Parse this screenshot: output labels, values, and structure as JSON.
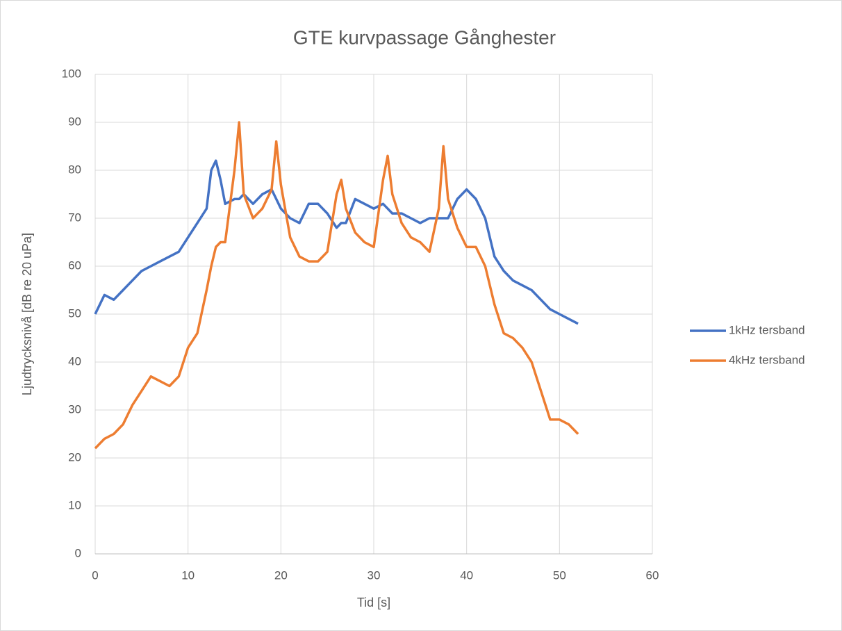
{
  "chart_data": {
    "type": "line",
    "title": "GTE kurvpassage Gånghester",
    "xlabel": "Tid [s]",
    "ylabel": "Ljudtrycksnivå [dB re 20 uPa]",
    "x": [
      0,
      1,
      2,
      3,
      4,
      5,
      6,
      7,
      8,
      9,
      10,
      11,
      12,
      12.5,
      13,
      13.5,
      14,
      15,
      15.5,
      16,
      17,
      18,
      19,
      19.5,
      20,
      21,
      22,
      23,
      24,
      25,
      26,
      26.5,
      27,
      28,
      29,
      30,
      31,
      31.5,
      32,
      33,
      34,
      35,
      36,
      37,
      37.5,
      38,
      39,
      40,
      41,
      42,
      43,
      44,
      45,
      46,
      47,
      48,
      49,
      50,
      51,
      52
    ],
    "series": [
      {
        "name": "1kHz tersband",
        "color": "#4472c4",
        "values": [
          50,
          54,
          53,
          55,
          57,
          59,
          60,
          61,
          62,
          63,
          66,
          69,
          72,
          80,
          82,
          78,
          73,
          74,
          74,
          75,
          73,
          75,
          76,
          74,
          72,
          70,
          69,
          73,
          73,
          71,
          68,
          69,
          69,
          74,
          73,
          72,
          73,
          72,
          71,
          71,
          70,
          69,
          70,
          70,
          70,
          70,
          74,
          76,
          74,
          70,
          62,
          59,
          57,
          56,
          55,
          53,
          51,
          50,
          49,
          48
        ]
      },
      {
        "name": "4kHz tersband",
        "color": "#ed7d31",
        "values": [
          22,
          24,
          25,
          27,
          31,
          34,
          37,
          36,
          35,
          37,
          43,
          46,
          55,
          60,
          64,
          65,
          65,
          80,
          90,
          75,
          70,
          72,
          76,
          86,
          77,
          66,
          62,
          61,
          61,
          63,
          75,
          78,
          72,
          67,
          65,
          64,
          78,
          83,
          75,
          69,
          66,
          65,
          63,
          72,
          85,
          74,
          68,
          64,
          64,
          60,
          52,
          46,
          45,
          43,
          40,
          34,
          28,
          28,
          27,
          25
        ]
      }
    ],
    "xlim": [
      0,
      60
    ],
    "xticks": [
      0,
      10,
      20,
      30,
      40,
      50,
      60
    ],
    "ylim": [
      0,
      100
    ],
    "yticks": [
      0,
      10,
      20,
      30,
      40,
      50,
      60,
      70,
      80,
      90,
      100
    ],
    "grid": true,
    "legend": "right"
  }
}
